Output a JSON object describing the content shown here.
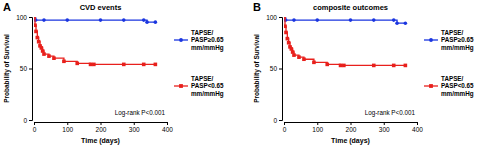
{
  "chart_data": [
    {
      "type": "line",
      "panel_label": "A",
      "title": "CVD events",
      "xlabel": "Time (days)",
      "ylabel": "Probability of Survival",
      "annotation": "Log-rank P<0.001",
      "xlim": [
        0,
        400
      ],
      "xticks": [
        0,
        100,
        200,
        300,
        400
      ],
      "ylim": [
        0,
        100
      ],
      "yticks": [
        0,
        50,
        100
      ],
      "line_style": "step",
      "legend": "right",
      "series": [
        {
          "name": "TAPSE/ PASP≥0.65 mm/mmHg",
          "color": "#1a35e0",
          "marker": "circle",
          "x": [
            0,
            5,
            30,
            100,
            200,
            270,
            330,
            340,
            365
          ],
          "values": [
            100,
            97,
            97,
            97,
            97,
            97,
            97,
            95,
            95
          ]
        },
        {
          "name": "TAPSE/ PASP<0.65 mm/mmHg",
          "color": "#e8201c",
          "marker": "square",
          "x": [
            0,
            3,
            6,
            10,
            14,
            18,
            22,
            26,
            30,
            45,
            60,
            90,
            130,
            170,
            180,
            270,
            330,
            365
          ],
          "values": [
            100,
            92,
            86,
            80,
            76,
            72,
            70,
            67,
            64,
            62,
            60,
            57,
            55,
            54,
            54,
            54,
            54,
            54
          ]
        }
      ]
    },
    {
      "type": "line",
      "panel_label": "B",
      "title": "composite outcomes",
      "xlabel": "Time (days)",
      "ylabel": "Probability of Survival",
      "annotation": "Log-rank P<0.001",
      "xlim": [
        0,
        400
      ],
      "xticks": [
        0,
        100,
        200,
        300,
        400
      ],
      "ylim": [
        0,
        100
      ],
      "yticks": [
        0,
        50,
        100
      ],
      "line_style": "step",
      "legend": "right",
      "series": [
        {
          "name": "TAPSE/ PASP≥0.65 mm/mmHg",
          "color": "#1a35e0",
          "marker": "circle",
          "x": [
            0,
            5,
            30,
            100,
            200,
            270,
            330,
            340,
            365
          ],
          "values": [
            100,
            97,
            97,
            97,
            97,
            97,
            97,
            94,
            94
          ]
        },
        {
          "name": "TAPSE/ PASP<0.65 mm/mmHg",
          "color": "#e8201c",
          "marker": "square",
          "x": [
            0,
            3,
            6,
            10,
            14,
            18,
            22,
            26,
            30,
            45,
            60,
            90,
            130,
            170,
            180,
            270,
            330,
            365
          ],
          "values": [
            100,
            91,
            85,
            79,
            75,
            71,
            69,
            66,
            63,
            61,
            59,
            56,
            54,
            53,
            53,
            53,
            53,
            53
          ]
        }
      ]
    }
  ]
}
